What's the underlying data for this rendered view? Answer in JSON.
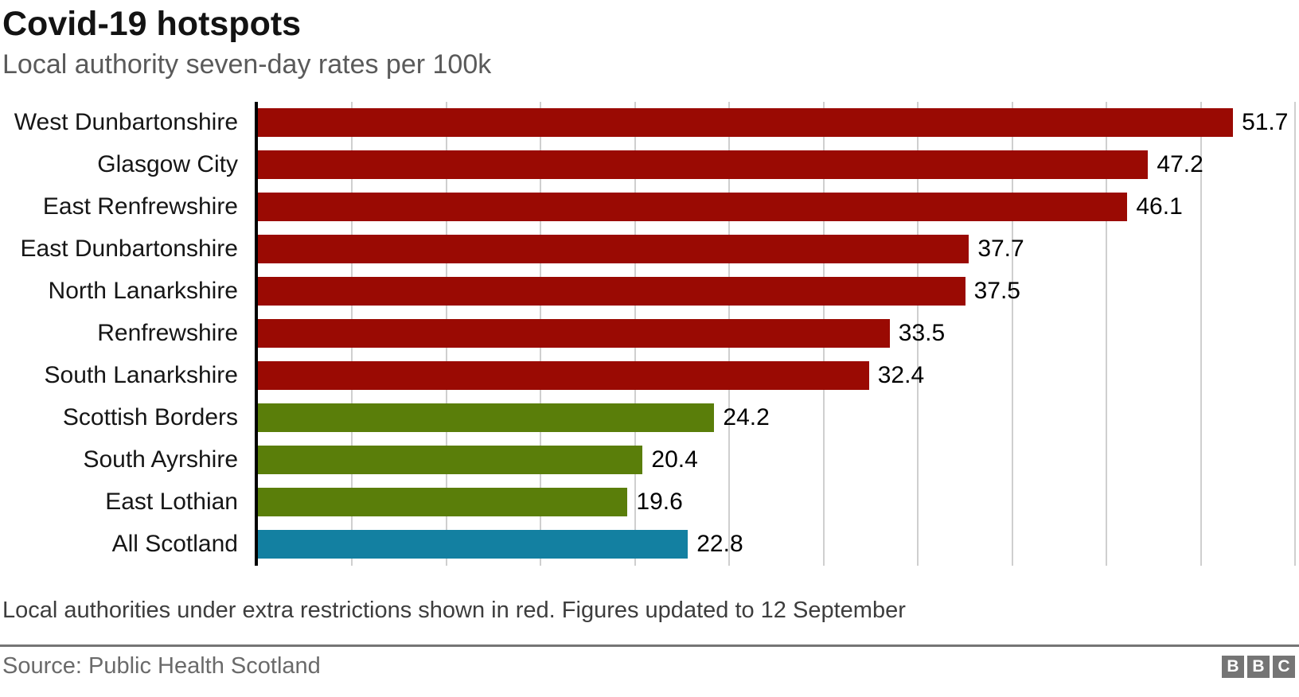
{
  "header": {
    "title": "Covid-19 hotspots",
    "subtitle": "Local authority seven-day rates per 100k"
  },
  "footer": {
    "note": "Local authorities under extra restrictions shown in red. Figures updated to 12 September",
    "source": "Source: Public Health Scotland",
    "logo_letters": [
      "B",
      "B",
      "C"
    ]
  },
  "colors": {
    "restricted_red": "#9a0a03",
    "normal_green": "#5a7e0a",
    "all_scotland_teal": "#1380a1",
    "gridline_gray": "#cfcfcf",
    "axis_black": "#000000",
    "divider_gray": "#757575",
    "logo_gray": "#757575"
  },
  "chart_data": {
    "type": "bar",
    "orientation": "horizontal",
    "title": "Covid-19 hotspots",
    "subtitle": "Local authority seven-day rates per 100k",
    "xlabel": "",
    "ylabel": "",
    "categories": [
      "West Dunbartonshire",
      "Glasgow City",
      "East Renfrewshire",
      "East Dunbartonshire",
      "North Lanarkshire",
      "Renfrewshire",
      "South Lanarkshire",
      "Scottish Borders",
      "South Ayrshire",
      "East Lothian",
      "All Scotland"
    ],
    "values": [
      51.7,
      47.2,
      46.1,
      37.7,
      37.5,
      33.5,
      32.4,
      24.2,
      20.4,
      19.6,
      22.8
    ],
    "bar_groups": [
      "restricted",
      "restricted",
      "restricted",
      "restricted",
      "restricted",
      "restricted",
      "restricted",
      "normal",
      "normal",
      "normal",
      "all_scotland"
    ],
    "group_colors": {
      "restricted": "#9a0a03",
      "normal": "#5a7e0a",
      "all_scotland": "#1380a1"
    },
    "group_meanings": {
      "restricted": "Local authority under extra restrictions (shown in red)",
      "normal": "Other local authority",
      "all_scotland": "All Scotland average"
    },
    "xlim": [
      0,
      55.2
    ],
    "gridline_interval": 5,
    "grid": true,
    "legend": "none",
    "annotation": "Local authorities under extra restrictions shown in red. Figures updated to 12 September"
  }
}
